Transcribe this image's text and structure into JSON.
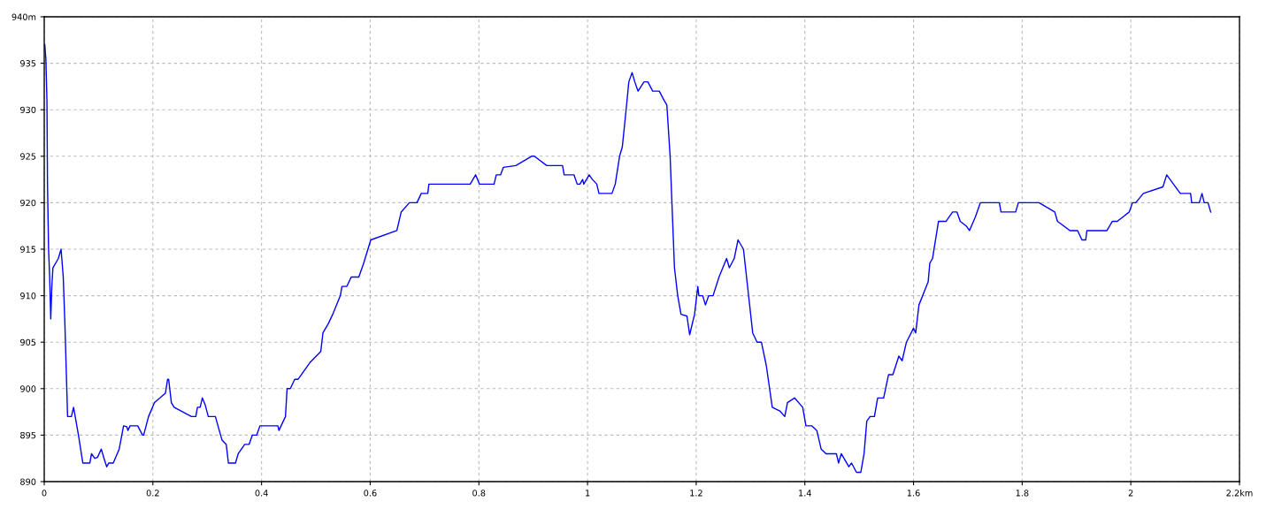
{
  "chart_data": {
    "type": "line",
    "xlim": [
      0,
      2.2
    ],
    "ylim": [
      890,
      940
    ],
    "xticks": [
      0,
      0.2,
      0.4,
      0.6,
      0.8,
      1,
      1.2,
      1.4,
      1.6,
      1.8,
      2,
      {
        "value": 2.2,
        "label": "2.2km"
      }
    ],
    "yticks": [
      890,
      895,
      900,
      905,
      910,
      915,
      920,
      925,
      930,
      935,
      {
        "value": 940,
        "label": "940m"
      }
    ],
    "grid": true,
    "line_style": "solid",
    "marker": "none",
    "series": [
      {
        "color": "#0000ff",
        "x": [
          0.001,
          0.003,
          0.005,
          0.006,
          0.008,
          0.01,
          0.012,
          0.014,
          0.016,
          0.026,
          0.031,
          0.035,
          0.038,
          0.043,
          0.05,
          0.054,
          0.063,
          0.071,
          0.084,
          0.087,
          0.093,
          0.098,
          0.105,
          0.11,
          0.115,
          0.119,
          0.127,
          0.138,
          0.146,
          0.152,
          0.154,
          0.158,
          0.172,
          0.181,
          0.183,
          0.192,
          0.203,
          0.223,
          0.227,
          0.229,
          0.234,
          0.239,
          0.271,
          0.279,
          0.282,
          0.287,
          0.291,
          0.296,
          0.302,
          0.315,
          0.327,
          0.335,
          0.339,
          0.352,
          0.357,
          0.369,
          0.377,
          0.383,
          0.391,
          0.397,
          0.43,
          0.432,
          0.444,
          0.447,
          0.453,
          0.461,
          0.467,
          0.489,
          0.509,
          0.513,
          0.523,
          0.531,
          0.545,
          0.548,
          0.557,
          0.565,
          0.579,
          0.588,
          0.601,
          0.649,
          0.657,
          0.672,
          0.686,
          0.694,
          0.706,
          0.708,
          0.784,
          0.794,
          0.801,
          0.828,
          0.832,
          0.84,
          0.845,
          0.868,
          0.897,
          0.902,
          0.925,
          0.954,
          0.957,
          0.975,
          0.981,
          0.986,
          0.991,
          0.993,
          1.003,
          1.009,
          1.017,
          1.021,
          1.045,
          1.051,
          1.059,
          1.064,
          1.071,
          1.076,
          1.082,
          1.087,
          1.093,
          1.104,
          1.111,
          1.12,
          1.132,
          1.141,
          1.146,
          1.152,
          1.156,
          1.16,
          1.166,
          1.172,
          1.183,
          1.188,
          1.197,
          1.203,
          1.205,
          1.212,
          1.217,
          1.223,
          1.231,
          1.242,
          1.256,
          1.261,
          1.27,
          1.277,
          1.287,
          1.304,
          1.312,
          1.32,
          1.329,
          1.34,
          1.354,
          1.363,
          1.368,
          1.381,
          1.396,
          1.402,
          1.413,
          1.422,
          1.43,
          1.439,
          1.458,
          1.462,
          1.467,
          1.481,
          1.486,
          1.495,
          1.503,
          1.509,
          1.514,
          1.52,
          1.528,
          1.534,
          1.545,
          1.554,
          1.562,
          1.573,
          1.579,
          1.587,
          1.6,
          1.604,
          1.61,
          1.627,
          1.63,
          1.635,
          1.646,
          1.66,
          1.672,
          1.68,
          1.686,
          1.697,
          1.703,
          1.714,
          1.723,
          1.758,
          1.761,
          1.788,
          1.793,
          1.831,
          1.86,
          1.865,
          1.888,
          1.902,
          1.91,
          1.917,
          1.919,
          1.956,
          1.966,
          1.975,
          1.997,
          2.003,
          2.009,
          2.023,
          2.059,
          2.066,
          2.091,
          2.11,
          2.112,
          2.126,
          2.131,
          2.135,
          2.142,
          2.147
        ],
        "values": [
          937,
          935.5,
          931,
          922,
          915,
          912,
          907.5,
          911,
          913,
          914,
          915,
          912,
          907,
          897,
          897,
          898,
          895,
          892,
          892,
          893,
          892.5,
          892.6,
          893.5,
          892.5,
          891.6,
          892,
          892,
          893.5,
          896,
          895.9,
          895.5,
          896,
          896,
          895,
          895,
          897,
          898.5,
          899.5,
          901,
          901,
          898.5,
          898,
          897,
          897,
          898,
          898,
          899,
          898.3,
          897,
          897,
          894.5,
          894,
          892,
          892,
          893,
          894,
          894,
          895,
          895,
          896,
          896,
          895.5,
          897,
          900,
          900,
          901,
          901,
          902.8,
          904,
          906,
          907,
          908,
          910,
          911,
          911,
          912,
          912,
          913.5,
          916,
          917,
          919,
          920,
          920,
          921,
          921,
          922,
          922,
          923,
          922,
          922,
          923,
          923,
          923.8,
          924,
          925,
          925,
          924,
          924,
          923,
          923,
          922,
          922,
          922.5,
          922,
          923,
          922.5,
          922,
          921,
          921,
          922,
          925,
          926,
          930,
          933,
          934,
          933,
          932,
          933,
          933,
          932,
          932,
          931,
          930.5,
          925,
          919,
          913,
          910,
          908,
          907.8,
          905.8,
          908,
          911,
          910,
          910,
          909,
          910,
          910,
          912,
          914,
          913,
          914,
          916,
          915,
          906,
          905,
          905,
          902.5,
          898,
          897.6,
          897,
          898.5,
          899,
          898,
          896,
          896,
          895.5,
          893.5,
          893,
          893,
          892,
          893,
          891.6,
          892,
          891,
          891,
          893,
          896.5,
          897,
          897,
          899,
          899,
          901.5,
          901.5,
          903.5,
          903,
          905,
          906.5,
          906,
          909,
          911.5,
          913.5,
          914,
          918,
          918,
          919,
          919,
          918,
          917.5,
          917,
          918.5,
          920,
          920,
          919,
          919,
          920,
          920,
          919,
          918,
          917,
          917,
          916,
          916,
          917,
          917,
          918,
          918,
          919,
          920,
          920,
          921,
          921.7,
          923,
          921,
          921,
          920,
          920,
          921,
          920,
          920,
          919
        ]
      }
    ]
  }
}
